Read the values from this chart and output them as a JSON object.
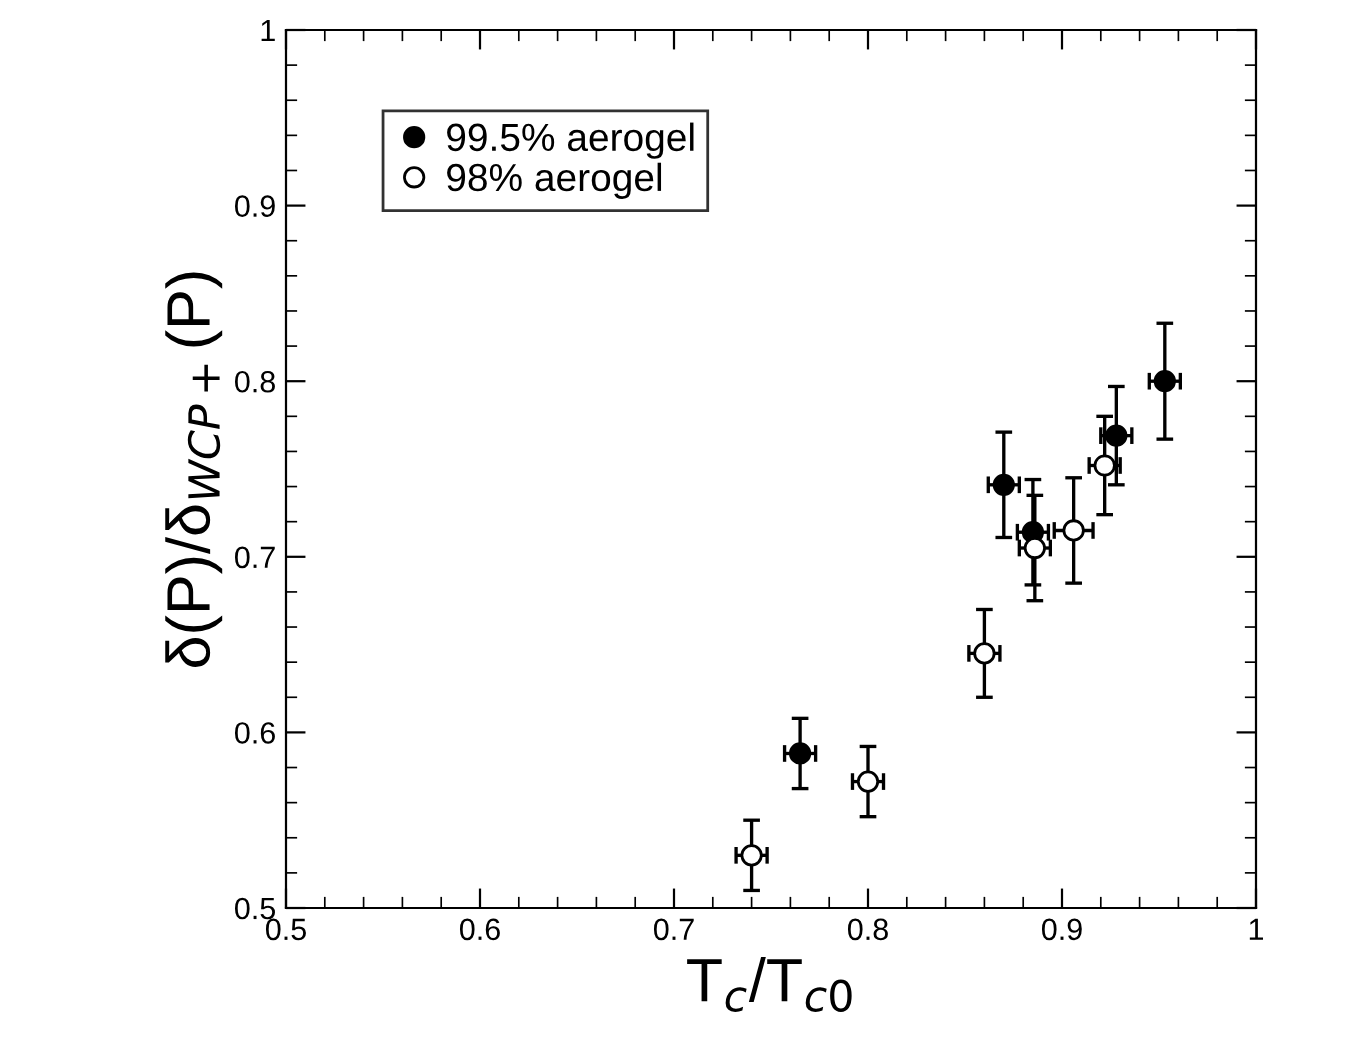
{
  "chart_data": {
    "type": "scatter",
    "xlabel": "T$_{c}$/T$_{c0}$",
    "ylabel": "δ(P)/δ$_{WCP+}$(P)",
    "xlim": [
      0.5,
      1
    ],
    "ylim": [
      0.5,
      1
    ],
    "xticks": [
      0.5,
      0.6,
      0.7,
      0.8,
      0.9,
      1
    ],
    "yticks": [
      0.5,
      0.6,
      0.7,
      0.8,
      0.9,
      1
    ],
    "grid": false,
    "legend": "top left",
    "marker": "circle",
    "series": [
      {
        "name": "99.5% aerogel",
        "color": "#000000",
        "x": [
          0.765,
          0.87,
          0.885,
          0.928,
          0.953
        ],
        "values": [
          0.588,
          0.741,
          0.714,
          0.769,
          0.8
        ],
        "errors": [
          0.02,
          0.03,
          0.03,
          0.028,
          0.033
        ],
        "xerrors": [
          0.008,
          0.008,
          0.008,
          0.008,
          0.008
        ]
      },
      {
        "name": "98% aerogel",
        "color": "#ffffff",
        "x": [
          0.74,
          0.8,
          0.86,
          0.886,
          0.906,
          0.922
        ],
        "values": [
          0.53,
          0.572,
          0.645,
          0.705,
          0.715,
          0.752
        ],
        "errors": [
          0.02,
          0.02,
          0.025,
          0.03,
          0.03,
          0.028
        ],
        "xerrors": [
          0.008,
          0.008,
          0.008,
          0.008,
          0.01,
          0.008
        ]
      }
    ]
  }
}
